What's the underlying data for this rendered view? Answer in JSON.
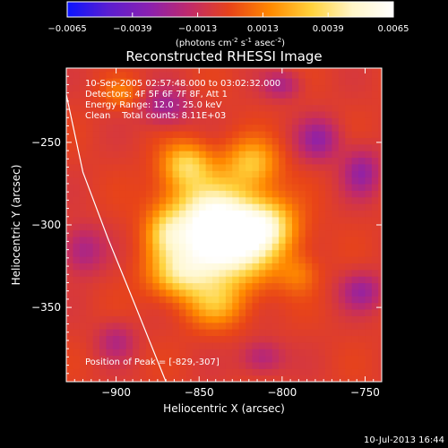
{
  "chart_data": {
    "type": "heatmap",
    "title": "Reconstructed RHESSI Image",
    "colorbar": {
      "min": -0.0065,
      "max": 0.0065,
      "ticks": [
        "-0.0065",
        "-0.0039",
        "-0.0013",
        "0.0013",
        "0.0039",
        "0.0065"
      ],
      "label_parts": [
        "(photons cm",
        "-2",
        " s",
        "-1",
        " asec",
        "-2",
        ")"
      ],
      "colormap": [
        "#0a14ff",
        "#5a1ed0",
        "#8a20b0",
        "#c02a6a",
        "#e84418",
        "#ff8a00",
        "#ffd23c",
        "#fff6c8",
        "#ffffff"
      ]
    },
    "xlabel": "Heliocentric X (arcsec)",
    "ylabel": "Heliocentric Y (arcsec)",
    "xlim": [
      -930,
      -740
    ],
    "ylim": [
      -395,
      -205
    ],
    "xticks": [
      -900,
      -850,
      -800,
      -750
    ],
    "yticks": [
      -250,
      -300,
      -350
    ],
    "xtick_labels": [
      "−900",
      "−850",
      "−800",
      "−750"
    ],
    "ytick_labels": [
      "−250",
      "−300",
      "−350"
    ],
    "peak": [
      -829,
      -307
    ],
    "limb_curve": [
      [
        -930,
        -221
      ],
      [
        -920,
        -268
      ],
      [
        -905,
        -308
      ],
      [
        -890,
        -345
      ],
      [
        -870,
        -395
      ]
    ],
    "sources": [
      {
        "x": -829,
        "y": -307,
        "sx": 20,
        "sy": 18,
        "amp": 0.0066
      },
      {
        "x": -848,
        "y": -300,
        "sx": 18,
        "sy": 22,
        "amp": 0.004
      },
      {
        "x": -858,
        "y": -263,
        "sx": 10,
        "sy": 9,
        "amp": 0.0032
      },
      {
        "x": -818,
        "y": -262,
        "sx": 11,
        "sy": 10,
        "amp": 0.003
      },
      {
        "x": -808,
        "y": -300,
        "sx": 11,
        "sy": 10,
        "amp": 0.0026
      },
      {
        "x": -862,
        "y": -330,
        "sx": 13,
        "sy": 10,
        "amp": 0.003
      },
      {
        "x": -840,
        "y": -348,
        "sx": 12,
        "sy": 10,
        "amp": 0.0024
      },
      {
        "x": -870,
        "y": -305,
        "sx": 8,
        "sy": 10,
        "amp": 0.0022
      },
      {
        "x": -897,
        "y": -220,
        "sx": 8,
        "sy": 6,
        "amp": 0.0016
      },
      {
        "x": -790,
        "y": -330,
        "sx": 8,
        "sy": 8,
        "amp": 0.0014
      }
    ],
    "negatives": [
      {
        "x": -870,
        "y": -228,
        "sx": 10,
        "sy": 8,
        "amp": -0.0022
      },
      {
        "x": -778,
        "y": -248,
        "sx": 9,
        "sy": 9,
        "amp": -0.0024
      },
      {
        "x": -752,
        "y": -268,
        "sx": 8,
        "sy": 10,
        "amp": -0.0024
      },
      {
        "x": -920,
        "y": -315,
        "sx": 9,
        "sy": 10,
        "amp": -0.002
      },
      {
        "x": -752,
        "y": -340,
        "sx": 9,
        "sy": 8,
        "amp": -0.0022
      },
      {
        "x": -812,
        "y": -380,
        "sx": 9,
        "sy": 7,
        "amp": -0.0018
      },
      {
        "x": -900,
        "y": -370,
        "sx": 8,
        "sy": 8,
        "amp": -0.0016
      },
      {
        "x": -800,
        "y": -215,
        "sx": 8,
        "sy": 6,
        "amp": -0.0018
      }
    ],
    "annotations": {
      "time_range": "10-Sep-2005 02:57:48.000 to 03:02:32.000",
      "detectors": "Detectors: 4F 5F 6F 7F 8F, Att 1",
      "energy_range": "Energy Range: 12.0 - 25.0 keV",
      "clean": "Clean    Total counts: 8.11E+03",
      "peak_position": "Position of Peak = [-829,-307]"
    },
    "timestamp": "10-Jul-2013 16:44"
  }
}
